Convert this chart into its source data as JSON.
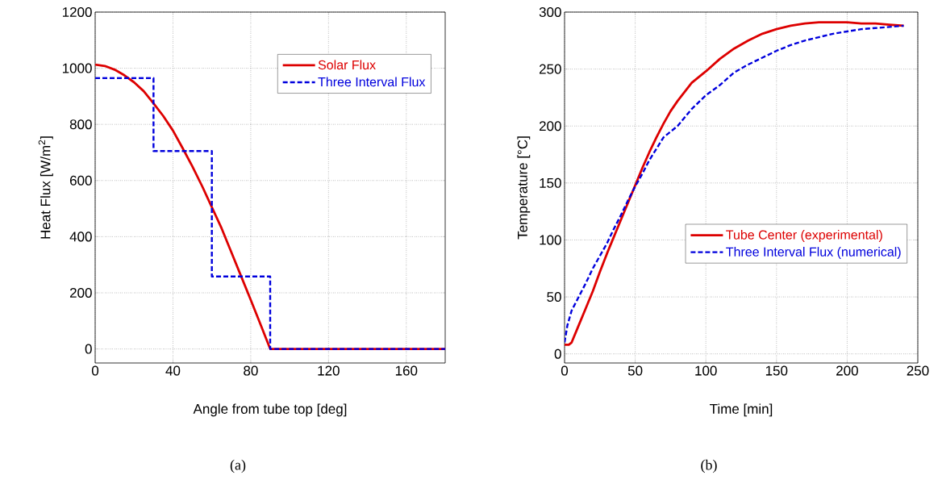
{
  "chart_data": [
    {
      "type": "line",
      "xlabel": "Angle from tube top [deg]",
      "ylabel": "Heat Flux [W/m$^{2}$]",
      "xlim": [
        0,
        180
      ],
      "ylim": [
        -50,
        1200
      ],
      "xticks": [
        0,
        40,
        80,
        120,
        160
      ],
      "yticks": [
        0,
        200,
        400,
        600,
        800,
        1000,
        1200
      ],
      "grid": true,
      "legend": "top right",
      "annotations": [
        "(a)"
      ],
      "series": [
        {
          "name": "Solar Flux",
          "color": "#dd0000",
          "type": "line",
          "line_style": "solid",
          "x": [
            0,
            5,
            10,
            15,
            20,
            25,
            30,
            35,
            40,
            45,
            50,
            55,
            60,
            65,
            70,
            75,
            80,
            85,
            90,
            180
          ],
          "values": [
            1013,
            1008,
            995,
            975,
            950,
            918,
            875,
            830,
            778,
            715,
            650,
            580,
            505,
            430,
            345,
            260,
            175,
            88,
            0,
            0
          ]
        },
        {
          "name": "Three Interval Flux",
          "color": "#0000dd",
          "type": "step",
          "line_style": "dashed",
          "x": [
            0,
            30,
            60,
            90,
            180
          ],
          "values": [
            965,
            705,
            258,
            0,
            0
          ]
        }
      ]
    },
    {
      "type": "line",
      "xlabel": "Time [min]",
      "ylabel": "Temperature [°C]",
      "xlim": [
        0,
        250
      ],
      "ylim": [
        -8,
        300
      ],
      "xticks": [
        0,
        50,
        100,
        150,
        200,
        250
      ],
      "yticks": [
        0,
        50,
        100,
        150,
        200,
        250,
        300
      ],
      "grid": true,
      "legend": "right",
      "annotations": [
        "(b)"
      ],
      "series": [
        {
          "name": "Tube Center (experimental)",
          "color": "#dd0000",
          "type": "line",
          "line_style": "solid",
          "x": [
            0,
            3,
            5,
            10,
            15,
            20,
            25,
            30,
            35,
            40,
            45,
            50,
            55,
            60,
            65,
            70,
            75,
            80,
            90,
            100,
            110,
            120,
            130,
            140,
            150,
            160,
            170,
            180,
            190,
            200,
            210,
            220,
            230,
            240
          ],
          "values": [
            8,
            8,
            10,
            25,
            40,
            55,
            72,
            88,
            103,
            118,
            133,
            148,
            163,
            177,
            190,
            202,
            213,
            222,
            238,
            248,
            259,
            268,
            275,
            281,
            285,
            288,
            290,
            291,
            291,
            291,
            290,
            290,
            289,
            288
          ]
        },
        {
          "name": "Three Interval Flux (numerical)",
          "color": "#0000dd",
          "type": "line",
          "line_style": "dashed",
          "x": [
            0,
            2,
            5,
            10,
            15,
            20,
            25,
            30,
            35,
            40,
            45,
            50,
            55,
            60,
            65,
            70,
            80,
            90,
            100,
            110,
            120,
            130,
            140,
            150,
            160,
            170,
            180,
            190,
            200,
            210,
            220,
            230,
            240
          ],
          "values": [
            10,
            25,
            38,
            50,
            62,
            75,
            86,
            97,
            110,
            122,
            135,
            147,
            158,
            170,
            180,
            190,
            200,
            215,
            227,
            236,
            247,
            254,
            260,
            266,
            271,
            275,
            278,
            281,
            283,
            285,
            286,
            287,
            288
          ]
        }
      ]
    }
  ]
}
